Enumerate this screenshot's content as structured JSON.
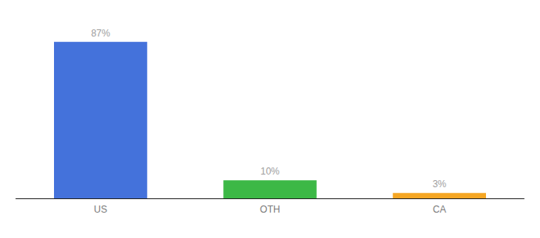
{
  "chart_data": {
    "type": "bar",
    "categories": [
      "US",
      "OTH",
      "CA"
    ],
    "values": [
      87,
      10,
      3
    ],
    "value_labels": [
      "87%",
      "10%",
      "3%"
    ],
    "colors": [
      "#4472db",
      "#3cb846",
      "#f5a623"
    ],
    "ylim": [
      0,
      97
    ],
    "grid": false,
    "data_labels": true,
    "tick_labels": "x"
  }
}
